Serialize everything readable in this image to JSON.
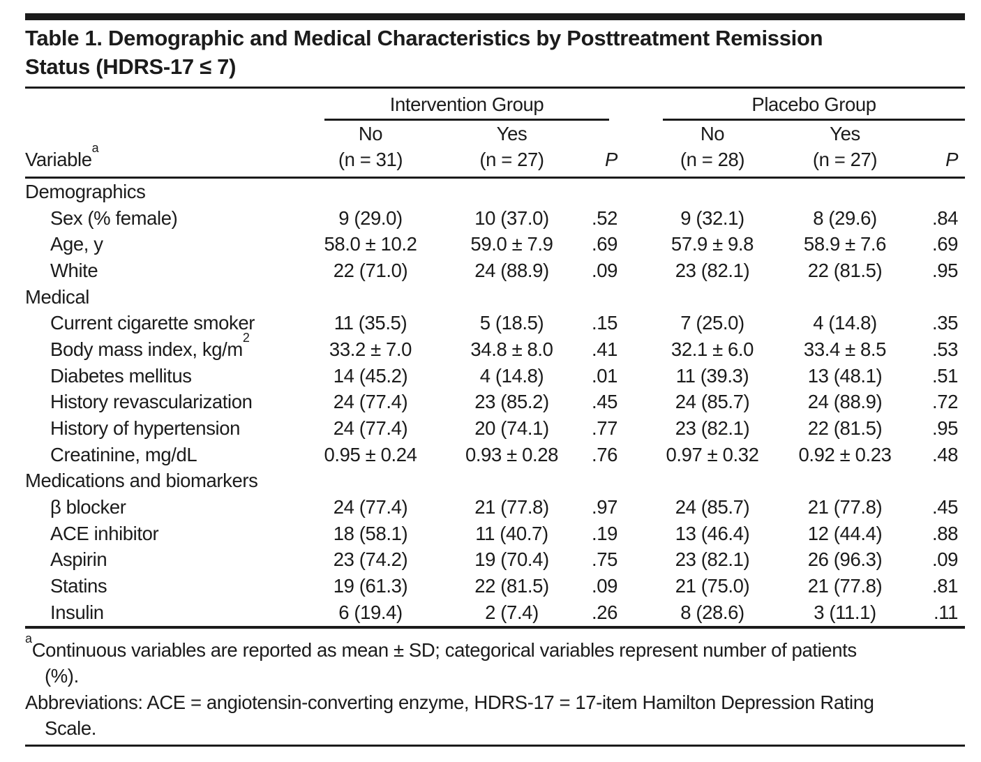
{
  "colors": {
    "ink": "#1b1b1b",
    "background": "#ffffff"
  },
  "title": {
    "line1": "Table 1. Demographic and Medical Characteristics by Posttreatment Remission",
    "line2": "Status (HDRS-17 ≤ 7)"
  },
  "header": {
    "group_intervention": "Intervention Group",
    "group_placebo": "Placebo Group",
    "variable": "Variable",
    "variable_sup": "a",
    "int_no_line1": "No",
    "int_no_line2": "(n = 31)",
    "int_yes_line1": "Yes",
    "int_yes_line2": "(n = 27)",
    "p1": "P",
    "pl_no_line1": "No",
    "pl_no_line2": "(n = 28)",
    "pl_yes_line1": "Yes",
    "pl_yes_line2": "(n = 27)",
    "p2": "P"
  },
  "rows": [
    {
      "type": "section",
      "label": "Demographics"
    },
    {
      "type": "item",
      "label": "Sex (% female)",
      "values": [
        "9 (29.0)",
        "10 (37.0)",
        ".52",
        "9 (32.1)",
        "8 (29.6)",
        ".84"
      ]
    },
    {
      "type": "item",
      "label": "Age, y",
      "values": [
        "58.0 ± 10.2",
        "59.0 ± 7.9",
        ".69",
        "57.9 ± 9.8",
        "58.9 ± 7.6",
        ".69"
      ]
    },
    {
      "type": "item",
      "label": "White",
      "values": [
        "22 (71.0)",
        "24 (88.9)",
        ".09",
        "23 (82.1)",
        "22 (81.5)",
        ".95"
      ]
    },
    {
      "type": "section",
      "label": "Medical"
    },
    {
      "type": "item",
      "label": "Current cigarette smoker",
      "values": [
        "11 (35.5)",
        "5 (18.5)",
        ".15",
        "7 (25.0)",
        "4 (14.8)",
        ".35"
      ]
    },
    {
      "type": "item",
      "label": "Body mass index, kg/m",
      "label_sup": "2",
      "values": [
        "33.2 ± 7.0",
        "34.8 ± 8.0",
        ".41",
        "32.1 ± 6.0",
        "33.4 ± 8.5",
        ".53"
      ]
    },
    {
      "type": "item",
      "label": "Diabetes mellitus",
      "values": [
        "14 (45.2)",
        "4 (14.8)",
        ".01",
        "11 (39.3)",
        "13 (48.1)",
        ".51"
      ]
    },
    {
      "type": "item",
      "label": "History revascularization",
      "values": [
        "24 (77.4)",
        "23 (85.2)",
        ".45",
        "24 (85.7)",
        "24 (88.9)",
        ".72"
      ]
    },
    {
      "type": "item",
      "label": "History of hypertension",
      "values": [
        "24 (77.4)",
        "20 (74.1)",
        ".77",
        "23 (82.1)",
        "22 (81.5)",
        ".95"
      ]
    },
    {
      "type": "item",
      "label": "Creatinine, mg/dL",
      "values": [
        "0.95 ± 0.24",
        "0.93 ± 0.28",
        ".76",
        "0.97 ± 0.32",
        "0.92 ± 0.23",
        ".48"
      ]
    },
    {
      "type": "section",
      "label": "Medications and biomarkers"
    },
    {
      "type": "item",
      "label": "β blocker",
      "values": [
        "24 (77.4)",
        "21 (77.8)",
        ".97",
        "24 (85.7)",
        "21 (77.8)",
        ".45"
      ]
    },
    {
      "type": "item",
      "label": "ACE inhibitor",
      "values": [
        "18 (58.1)",
        "11 (40.7)",
        ".19",
        "13 (46.4)",
        "12 (44.4)",
        ".88"
      ]
    },
    {
      "type": "item",
      "label": "Aspirin",
      "values": [
        "23 (74.2)",
        "19 (70.4)",
        ".75",
        "23 (82.1)",
        "26 (96.3)",
        ".09"
      ]
    },
    {
      "type": "item",
      "label": "Statins",
      "values": [
        "19 (61.3)",
        "22 (81.5)",
        ".09",
        "21 (75.0)",
        "21 (77.8)",
        ".81"
      ]
    },
    {
      "type": "item",
      "label": "Insulin",
      "values": [
        "6 (19.4)",
        "2 (7.4)",
        ".26",
        "8 (28.6)",
        "3 (11.1)",
        ".11"
      ]
    }
  ],
  "footnotes": {
    "marker": "a",
    "continuous_line1": "Continuous variables are reported as mean ± SD; categorical variables represent number of patients",
    "continuous_line2": "(%).",
    "abbreviations_line1": "Abbreviations: ACE = angiotensin-converting enzyme, HDRS-17 = 17-item Hamilton Depression Rating",
    "abbreviations_line2": "Scale."
  }
}
